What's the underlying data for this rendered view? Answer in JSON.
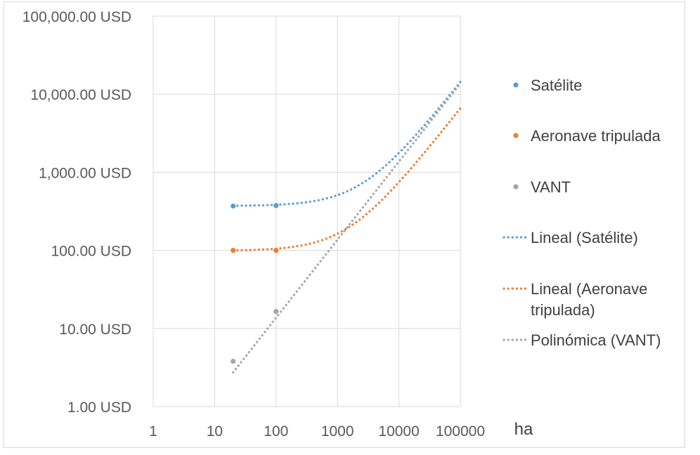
{
  "chart_data": {
    "type": "scatter",
    "x_scale": "log",
    "y_scale": "log",
    "xlabel": "ha",
    "ylabel": "",
    "xlim": [
      1,
      100000
    ],
    "ylim": [
      1,
      100000
    ],
    "x_ticks": [
      "1",
      "10",
      "100",
      "1000",
      "10000",
      "100000"
    ],
    "y_ticks": [
      "1.00 USD",
      "10.00 USD",
      "100.00 USD",
      "1,000.00 USD",
      "10,000.00 USD",
      "100,000.00 USD"
    ],
    "grid": true,
    "legend_position": "right",
    "series": [
      {
        "name": "Satélite",
        "color": "#5b9bd5",
        "kind": "markers",
        "x": [
          20,
          100
        ],
        "y": [
          370,
          375
        ]
      },
      {
        "name": "Aeronave tripulada",
        "color": "#ed7d31",
        "kind": "markers",
        "x": [
          20,
          100
        ],
        "y": [
          100,
          100
        ]
      },
      {
        "name": "VANT",
        "color": "#a5a5a5",
        "kind": "markers",
        "x": [
          20,
          100
        ],
        "y": [
          3.8,
          16.5
        ]
      },
      {
        "name": "Lineal (Satélite)",
        "color": "#5b9bd5",
        "kind": "trend",
        "fit": "linear",
        "slope": 0.14,
        "intercept": 370,
        "x0": 20,
        "x1": 100000
      },
      {
        "name": "Lineal (Aeronave tripulada)",
        "color": "#ed7d31",
        "kind": "trend",
        "fit": "linear",
        "slope": 0.065,
        "intercept": 98.7,
        "x0": 20,
        "x1": 100000
      },
      {
        "name": "Polinómica (VANT)",
        "color": "#a5a5a5",
        "kind": "trend",
        "fit": "power",
        "coef": 0.137,
        "exponent": 1.0,
        "x0": 20,
        "x1": 100000
      }
    ]
  }
}
